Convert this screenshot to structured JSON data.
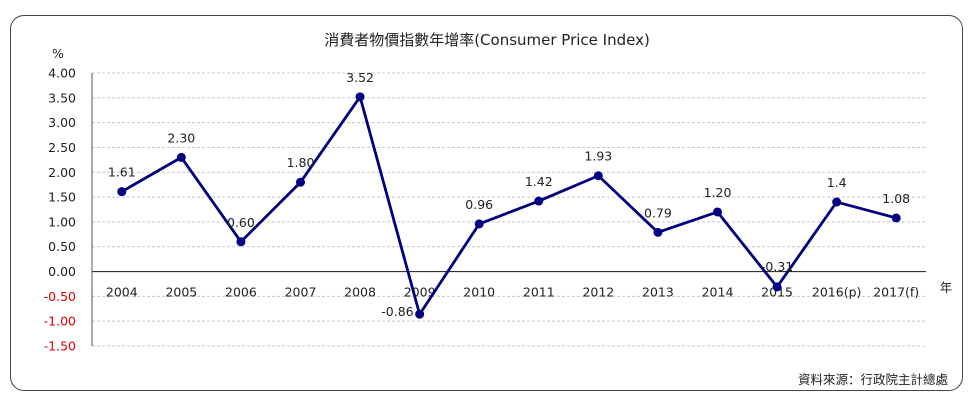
{
  "chart_data": {
    "type": "line",
    "title": "消費者物價指數年增率(Consumer Price Index)",
    "ylabel": "%",
    "xlabel": "年",
    "source": "資料來源：行政院主計總處",
    "categories": [
      "2004",
      "2005",
      "2006",
      "2007",
      "2008",
      "2009",
      "2010",
      "2011",
      "2012",
      "2013",
      "2014",
      "2015",
      "2016(p)",
      "2017(f)"
    ],
    "values": [
      1.61,
      2.3,
      0.6,
      1.8,
      3.52,
      -0.86,
      0.96,
      1.42,
      1.93,
      0.79,
      1.2,
      -0.31,
      1.4,
      1.08
    ],
    "data_labels": [
      "1.61",
      "2.30",
      "0.60",
      "1.80",
      "3.52",
      "-0.86",
      "0.96",
      "1.42",
      "1.93",
      "0.79",
      "1.20",
      "-0.31",
      "1.4",
      "1.08"
    ],
    "y_ticks": [
      "4.00",
      "3.50",
      "3.00",
      "2.50",
      "2.00",
      "1.50",
      "1.00",
      "0.50",
      "0.00",
      "-0.50",
      "-1.00",
      "-1.50"
    ],
    "ylim": [
      -1.5,
      4.0
    ],
    "grid": true,
    "line_color": "#000080",
    "negative_tick_color": "#e00000"
  }
}
